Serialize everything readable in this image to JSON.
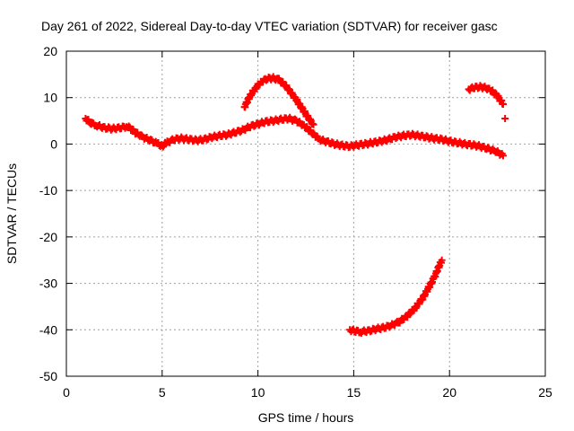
{
  "chart_data": {
    "type": "scatter",
    "title": "Day 261 of 2022, Sidereal Day-to-day VTEC variation (SDTVAR) for receiver gasc",
    "xlabel": "GPS time / hours",
    "ylabel": "SDTVAR / TECUs",
    "xlim": [
      0,
      25
    ],
    "ylim": [
      -50,
      20
    ],
    "xticks": [
      0,
      5,
      10,
      15,
      20,
      25
    ],
    "yticks": [
      -50,
      -40,
      -30,
      -20,
      -10,
      0,
      10,
      20
    ],
    "grid": true,
    "legend": "none",
    "marker": "+",
    "color": "#ff0000",
    "series": [
      {
        "name": "main-trace",
        "x": [
          1.0,
          1.3,
          1.6,
          2.0,
          2.4,
          2.8,
          3.2,
          3.6,
          4.0,
          4.4,
          4.8,
          5.0,
          5.2,
          5.6,
          6.0,
          6.4,
          6.8,
          7.2,
          7.6,
          8.0,
          8.4,
          8.8,
          9.2,
          9.6,
          10.0,
          10.4,
          10.8,
          11.2,
          11.6,
          12.0,
          12.4,
          12.8,
          13.2,
          13.6,
          14.0,
          14.4,
          14.8,
          15.2,
          15.6,
          16.0,
          16.4,
          16.8,
          17.2,
          17.6,
          18.0,
          18.4,
          18.8,
          19.2,
          19.6,
          20.0,
          20.4,
          20.8,
          21.2,
          21.6,
          22.0,
          22.4,
          22.8
        ],
        "y": [
          5.5,
          4.5,
          4.0,
          3.5,
          3.3,
          3.5,
          3.8,
          2.5,
          1.5,
          0.8,
          0.0,
          -0.5,
          0.2,
          1.0,
          1.2,
          1.0,
          0.8,
          1.0,
          1.5,
          1.8,
          2.0,
          2.5,
          3.0,
          3.8,
          4.3,
          4.8,
          5.0,
          5.3,
          5.5,
          5.0,
          4.0,
          2.5,
          1.0,
          0.5,
          0.0,
          -0.3,
          -0.5,
          -0.2,
          0.0,
          0.3,
          0.6,
          1.0,
          1.5,
          1.8,
          2.0,
          1.8,
          1.5,
          1.2,
          1.0,
          0.6,
          0.3,
          0.0,
          -0.2,
          -0.5,
          -1.0,
          -1.5,
          -2.5
        ]
      },
      {
        "name": "upper-arc",
        "x": [
          9.3,
          9.6,
          9.9,
          10.2,
          10.5,
          10.8,
          11.1,
          11.4,
          11.7,
          12.0,
          12.3,
          12.6,
          12.9
        ],
        "y": [
          8.0,
          10.5,
          12.2,
          13.5,
          14.1,
          14.2,
          13.8,
          12.8,
          11.2,
          9.5,
          7.7,
          5.8,
          4.2
        ]
      },
      {
        "name": "lower-arc",
        "x": [
          14.8,
          15.1,
          15.4,
          15.8,
          16.2,
          16.6,
          17.0,
          17.4,
          17.8,
          18.2,
          18.6,
          18.9,
          19.2,
          19.4,
          19.6
        ],
        "y": [
          -40.0,
          -40.3,
          -40.4,
          -40.2,
          -39.8,
          -39.5,
          -39.0,
          -38.2,
          -37.0,
          -35.3,
          -33.2,
          -31.0,
          -28.8,
          -26.8,
          -25.0
        ]
      },
      {
        "name": "short-arc",
        "x": [
          21.0,
          21.3,
          21.6,
          21.9,
          22.2,
          22.5,
          22.8
        ],
        "y": [
          11.8,
          12.2,
          12.3,
          12.1,
          11.5,
          10.3,
          8.6
        ]
      },
      {
        "name": "isolated-point",
        "x": [
          22.9
        ],
        "y": [
          5.5
        ]
      }
    ]
  }
}
